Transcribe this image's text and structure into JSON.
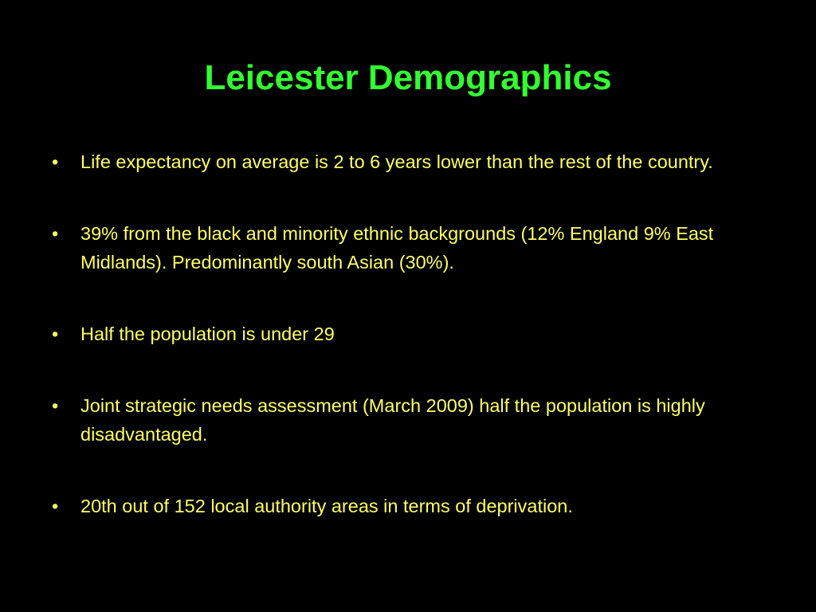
{
  "slide": {
    "title": "Leicester Demographics",
    "bullets": [
      "Life expectancy on average is 2 to 6 years lower than the rest of the country.",
      "39% from the black and minority ethnic backgrounds (12% England 9% East Midlands). Predominantly south Asian (30%).",
      "Half the population is under 29",
      "Joint strategic needs assessment (March 2009) half the population is highly disadvantaged.",
      "20th out of 152 local authority areas in terms of deprivation."
    ]
  }
}
